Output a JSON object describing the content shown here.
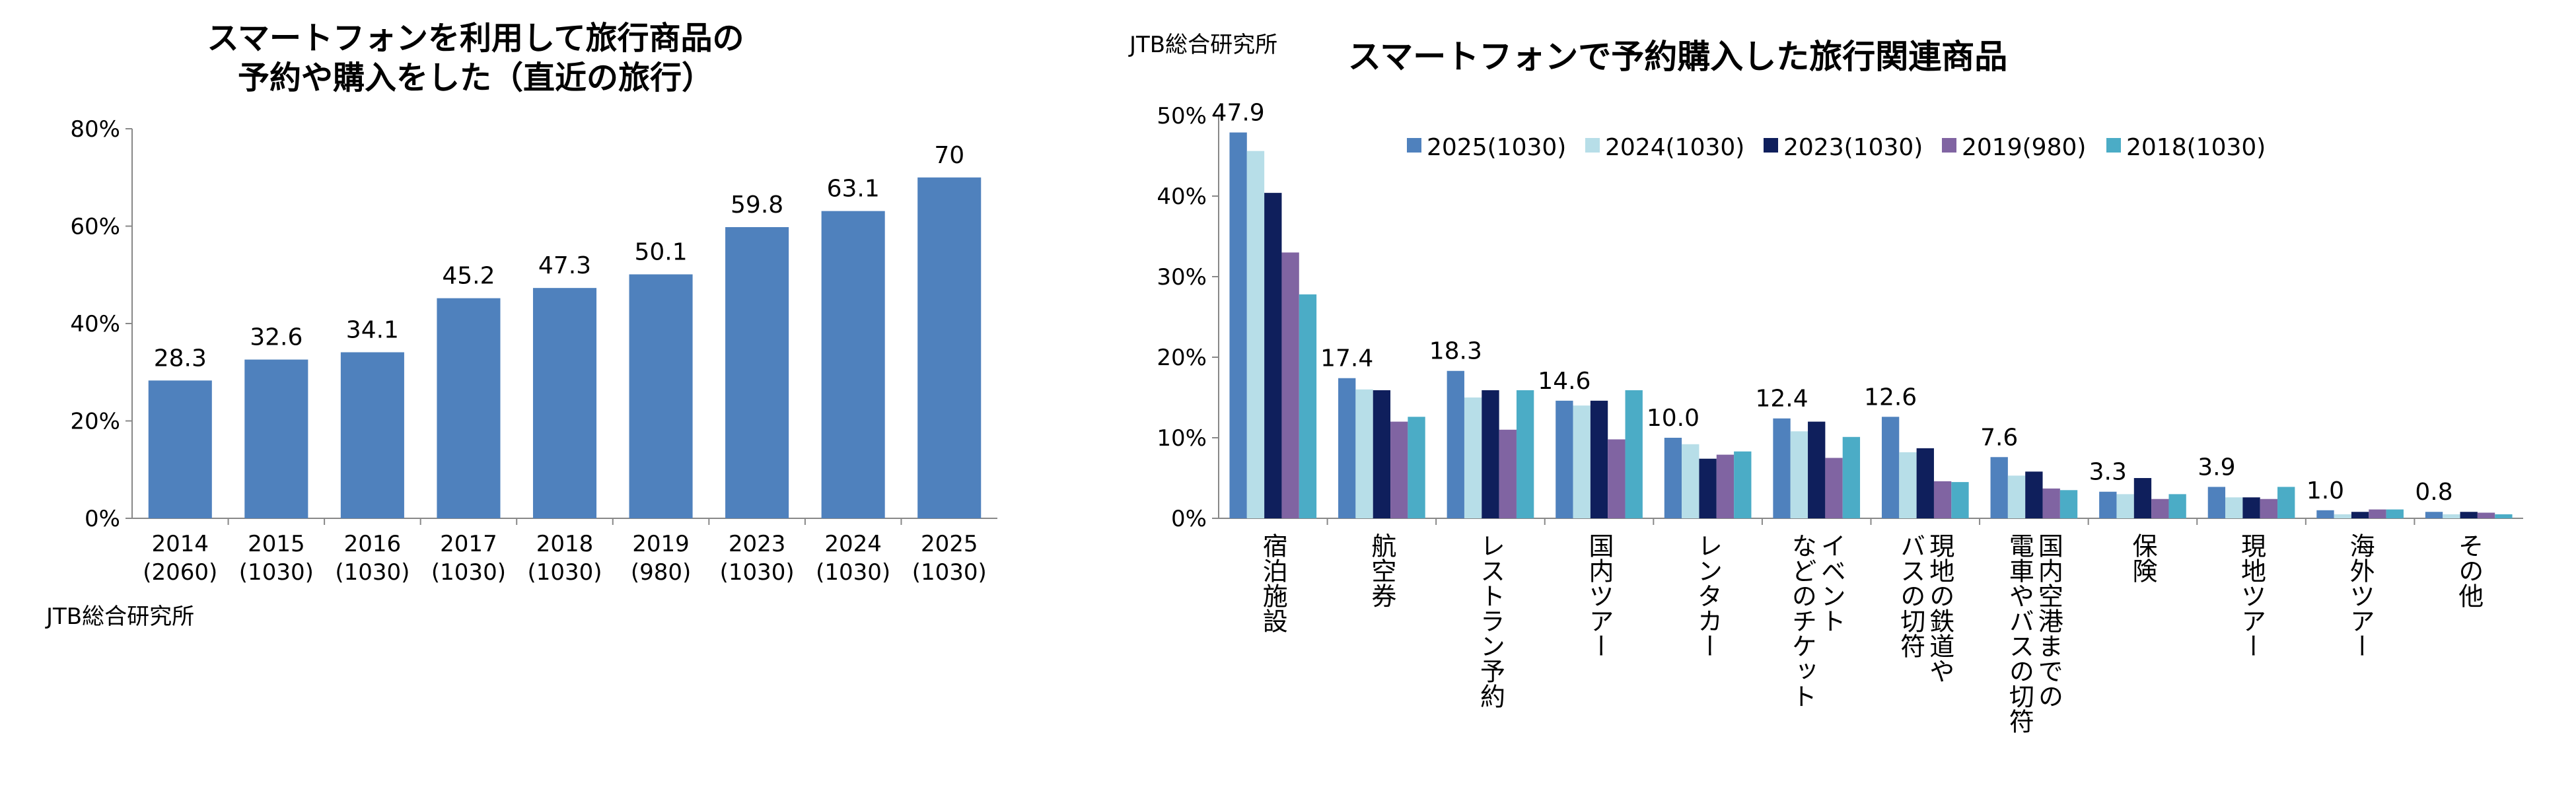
{
  "chart_data": [
    {
      "type": "bar",
      "title_lines": [
        "スマートフォンを利用して旅行商品の",
        "予約や購入をした（直近の旅行）"
      ],
      "source": "JTB総合研究所",
      "categories": [
        "2014",
        "2015",
        "2016",
        "2017",
        "2018",
        "2019",
        "2023",
        "2024",
        "2025"
      ],
      "category_samples": [
        "(2060)",
        "(1030)",
        "(1030)",
        "(1030)",
        "(1030)",
        "(980)",
        "(1030)",
        "(1030)",
        "(1030)"
      ],
      "values": [
        28.3,
        32.6,
        34.1,
        45.2,
        47.3,
        50.1,
        59.8,
        63.1,
        70
      ],
      "value_labels": [
        "28.3",
        "32.6",
        "34.1",
        "45.2",
        "47.3",
        "50.1",
        "59.8",
        "63.1",
        "70"
      ],
      "ylim": [
        0,
        80
      ],
      "yticks": [
        "0%",
        "20%",
        "40%",
        "60%",
        "80%"
      ],
      "color": "#4f81bd",
      "grid": false
    },
    {
      "type": "bar",
      "title": "スマートフォンで予約購入した旅行関連商品",
      "source": "JTB総合研究所",
      "legend_position": "top",
      "categories": [
        "宿泊施設",
        "航空券",
        "レストラン予約",
        "国内ツアー",
        "レンタカー",
        "イベント|などのチケット",
        "現地の鉄道や|バスの切符",
        "国内空港までの|電車やバスの切符",
        "保険",
        "現地ツアー",
        "海外ツアー",
        "その他"
      ],
      "series": [
        {
          "name": "2025(1030)",
          "color": "#4f81bd",
          "values": [
            47.9,
            17.4,
            18.3,
            14.6,
            10.0,
            12.4,
            12.6,
            7.6,
            3.3,
            3.9,
            1.0,
            0.8
          ]
        },
        {
          "name": "2024(1030)",
          "color": "#b7dee8",
          "values": [
            45.6,
            16.0,
            15.0,
            14.0,
            9.2,
            10.8,
            8.2,
            5.3,
            3.0,
            2.6,
            0.5,
            0.5
          ]
        },
        {
          "name": "2023(1030)",
          "color": "#0f1f5c",
          "values": [
            40.4,
            15.9,
            15.9,
            14.6,
            7.4,
            12.0,
            8.7,
            5.8,
            5.0,
            2.6,
            0.8,
            0.8
          ]
        },
        {
          "name": "2019(980)",
          "color": "#8064a2",
          "values": [
            33.0,
            12.0,
            11.0,
            9.8,
            7.9,
            7.5,
            4.6,
            3.7,
            2.4,
            2.4,
            1.1,
            0.7
          ]
        },
        {
          "name": "2018(1030)",
          "color": "#4bacc6",
          "values": [
            27.8,
            12.6,
            15.9,
            15.9,
            8.3,
            10.1,
            4.5,
            3.5,
            3.0,
            3.9,
            1.1,
            0.5
          ]
        }
      ],
      "value_labels": [
        "47.9",
        "17.4",
        "18.3",
        "14.6",
        "10.0",
        "12.4",
        "12.6",
        "7.6",
        "3.3",
        "3.9",
        "1.0",
        "0.8"
      ],
      "ylim": [
        0,
        50
      ],
      "yticks": [
        "0%",
        "10%",
        "20%",
        "30%",
        "40%",
        "50%"
      ],
      "grid": false
    }
  ]
}
